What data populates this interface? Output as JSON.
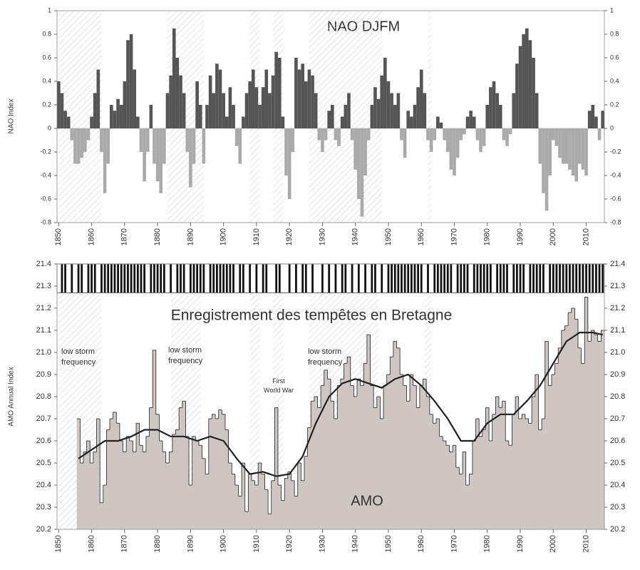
{
  "chart_data": [
    {
      "type": "bar",
      "title": "NAO DJFM",
      "ylabel": "NAO Index",
      "xlim": [
        1849.5,
        2015.5
      ],
      "xticks": [
        1850,
        1860,
        1870,
        1880,
        1890,
        1900,
        1910,
        1920,
        1930,
        1940,
        1950,
        1960,
        1970,
        1980,
        1990,
        2000,
        2010
      ],
      "ylim": [
        -0.8,
        1
      ],
      "yticks": [
        -0.8,
        -0.6,
        -0.4,
        -0.2,
        0,
        0.2,
        0.4,
        0.6,
        0.8,
        1
      ],
      "positive_color": "#555555",
      "negative_color": "#aaaaaa",
      "hatch_color": "#c8c8c8",
      "hatched_periods": [
        [
          1850,
          1863
        ],
        [
          1883,
          1894
        ],
        [
          1908,
          1911
        ],
        [
          1915,
          1918
        ],
        [
          1926,
          1948
        ],
        [
          1962,
          1963
        ]
      ],
      "x": [
        1850,
        1851,
        1852,
        1853,
        1854,
        1855,
        1856,
        1857,
        1858,
        1859,
        1860,
        1861,
        1862,
        1863,
        1864,
        1865,
        1866,
        1867,
        1868,
        1869,
        1870,
        1871,
        1872,
        1873,
        1874,
        1875,
        1876,
        1877,
        1878,
        1879,
        1880,
        1881,
        1882,
        1883,
        1884,
        1885,
        1886,
        1887,
        1888,
        1889,
        1890,
        1891,
        1892,
        1893,
        1894,
        1895,
        1896,
        1897,
        1898,
        1899,
        1900,
        1901,
        1902,
        1903,
        1904,
        1905,
        1906,
        1907,
        1908,
        1909,
        1910,
        1911,
        1912,
        1913,
        1914,
        1915,
        1916,
        1917,
        1918,
        1919,
        1920,
        1921,
        1922,
        1923,
        1924,
        1925,
        1926,
        1927,
        1928,
        1929,
        1930,
        1931,
        1932,
        1933,
        1934,
        1935,
        1936,
        1937,
        1938,
        1939,
        1940,
        1941,
        1942,
        1943,
        1944,
        1945,
        1946,
        1947,
        1948,
        1949,
        1950,
        1951,
        1952,
        1953,
        1954,
        1955,
        1956,
        1957,
        1958,
        1959,
        1960,
        1961,
        1962,
        1963,
        1964,
        1965,
        1966,
        1967,
        1968,
        1969,
        1970,
        1971,
        1972,
        1973,
        1974,
        1975,
        1976,
        1977,
        1978,
        1979,
        1980,
        1981,
        1982,
        1983,
        1984,
        1985,
        1986,
        1987,
        1988,
        1989,
        1990,
        1991,
        1992,
        1993,
        1994,
        1995,
        1996,
        1997,
        1998,
        1999,
        2000,
        2001,
        2002,
        2003,
        2004,
        2005,
        2006,
        2007,
        2008,
        2009,
        2010,
        2011,
        2012,
        2013,
        2014,
        2015
      ],
      "values": [
        0.4,
        0.3,
        0.15,
        0.1,
        -0.1,
        -0.3,
        -0.3,
        -0.25,
        -0.2,
        -0.1,
        0.1,
        0.3,
        0.5,
        -0.2,
        -0.55,
        -0.3,
        0.2,
        0.15,
        0.25,
        0.2,
        0.4,
        0.75,
        0.8,
        0.5,
        0.1,
        -0.2,
        -0.45,
        -0.2,
        0.2,
        -0.3,
        -0.45,
        -0.55,
        -0.3,
        0.3,
        0.45,
        0.85,
        0.6,
        0.45,
        0.3,
        -0.2,
        -0.5,
        -0.3,
        0.4,
        0.2,
        -0.3,
        0.2,
        0.45,
        0.3,
        0.55,
        0.5,
        0.3,
        0.1,
        0.35,
        0.2,
        -0.15,
        -0.3,
        0.1,
        0.3,
        0.4,
        0.5,
        0.35,
        0.2,
        0.35,
        0.5,
        0.3,
        0.45,
        0.65,
        0.6,
        0.1,
        -0.4,
        -0.6,
        -0.2,
        0.6,
        0.5,
        0.55,
        0.4,
        0.5,
        0.45,
        0.3,
        -0.1,
        -0.2,
        -0.1,
        0.15,
        0.2,
        -0.1,
        -0.15,
        0.1,
        0.2,
        0.3,
        -0.1,
        -0.35,
        -0.6,
        -0.75,
        -0.4,
        -0.1,
        0.2,
        0.35,
        0.25,
        0.45,
        0.6,
        0.4,
        0.3,
        0.2,
        0.3,
        -0.1,
        -0.25,
        0.15,
        0.1,
        0.2,
        0.35,
        0.5,
        0.3,
        -0.1,
        -0.2,
        -0.1,
        0.1,
        0.05,
        -0.1,
        -0.2,
        -0.35,
        -0.4,
        -0.25,
        -0.1,
        -0.05,
        0.1,
        0.15,
        0.1,
        -0.1,
        -0.2,
        -0.15,
        0.2,
        0.35,
        0.4,
        0.3,
        0.2,
        -0.1,
        -0.15,
        -0.05,
        0.3,
        0.55,
        0.7,
        0.8,
        0.85,
        0.75,
        0.6,
        0.3,
        -0.3,
        -0.55,
        -0.7,
        -0.4,
        -0.1,
        -0.15,
        -0.25,
        -0.3,
        -0.3,
        -0.35,
        -0.4,
        -0.45,
        -0.3,
        -0.35,
        -0.4,
        0.15,
        0.2,
        0.1,
        -0.1,
        0.15
      ]
    },
    {
      "type": "step",
      "title": "Enregistrement des tempêtes en Bretagne",
      "ylabel": "AMO Annual Index",
      "series_label": "AMO",
      "annotations": [
        "low storm frequency",
        "low storm frequency",
        "low storm frequency",
        "First World War"
      ],
      "xlim": [
        1849.5,
        2015.5
      ],
      "xticks": [
        1850,
        1860,
        1870,
        1880,
        1890,
        1900,
        1910,
        1920,
        1930,
        1940,
        1950,
        1960,
        1970,
        1980,
        1990,
        2000,
        2010
      ],
      "ylim": [
        20.2,
        21.4
      ],
      "yticks": [
        20.2,
        20.3,
        20.4,
        20.5,
        20.6,
        20.7,
        20.8,
        20.9,
        {
          "value": 21,
          "label": "21.0"
        },
        21.1,
        21.2,
        21.3,
        21.4
      ],
      "fill_color": "#cdc6c2",
      "line_color": "#222222",
      "hatch_color": "#c8c8c8",
      "hatched_periods": [
        [
          1850,
          1863
        ],
        [
          1884,
          1893
        ],
        [
          1908,
          1911
        ],
        [
          1915,
          1918
        ],
        [
          1926,
          1947
        ],
        [
          1961,
          1963
        ]
      ],
      "x": [
        1856,
        1857,
        1858,
        1859,
        1860,
        1861,
        1862,
        1863,
        1864,
        1865,
        1866,
        1867,
        1868,
        1869,
        1870,
        1871,
        1872,
        1873,
        1874,
        1875,
        1876,
        1877,
        1878,
        1879,
        1880,
        1881,
        1882,
        1883,
        1884,
        1885,
        1886,
        1887,
        1888,
        1889,
        1890,
        1891,
        1892,
        1893,
        1894,
        1895,
        1896,
        1897,
        1898,
        1899,
        1900,
        1901,
        1902,
        1903,
        1904,
        1905,
        1906,
        1907,
        1908,
        1909,
        1910,
        1911,
        1912,
        1913,
        1914,
        1915,
        1916,
        1917,
        1918,
        1919,
        1920,
        1921,
        1922,
        1923,
        1924,
        1925,
        1926,
        1927,
        1928,
        1929,
        1930,
        1931,
        1932,
        1933,
        1934,
        1935,
        1936,
        1937,
        1938,
        1939,
        1940,
        1941,
        1942,
        1943,
        1944,
        1945,
        1946,
        1947,
        1948,
        1949,
        1950,
        1951,
        1952,
        1953,
        1954,
        1955,
        1956,
        1957,
        1958,
        1959,
        1960,
        1961,
        1962,
        1963,
        1964,
        1965,
        1966,
        1967,
        1968,
        1969,
        1970,
        1971,
        1972,
        1973,
        1974,
        1975,
        1976,
        1977,
        1978,
        1979,
        1980,
        1981,
        1982,
        1983,
        1984,
        1985,
        1986,
        1987,
        1988,
        1989,
        1990,
        1991,
        1992,
        1993,
        1994,
        1995,
        1996,
        1997,
        1998,
        1999,
        2000,
        2001,
        2002,
        2003,
        2004,
        2005,
        2006,
        2007,
        2008,
        2009,
        2010,
        2011,
        2012,
        2013,
        2014,
        2015
      ],
      "values": [
        20.7,
        20.5,
        20.55,
        20.6,
        20.5,
        20.55,
        20.7,
        20.32,
        20.4,
        20.65,
        20.7,
        20.73,
        20.68,
        20.6,
        20.55,
        20.62,
        20.6,
        20.55,
        20.68,
        20.58,
        20.55,
        20.62,
        20.75,
        21.01,
        20.72,
        20.6,
        20.55,
        20.5,
        20.55,
        20.63,
        20.65,
        20.75,
        20.78,
        20.62,
        20.4,
        20.62,
        20.6,
        20.58,
        20.52,
        20.45,
        20.7,
        20.72,
        20.7,
        20.74,
        20.72,
        20.65,
        20.5,
        20.45,
        20.4,
        20.35,
        20.5,
        20.28,
        20.45,
        20.42,
        20.4,
        20.5,
        20.45,
        20.38,
        20.27,
        20.42,
        20.75,
        20.4,
        20.33,
        20.43,
        20.46,
        20.42,
        20.35,
        20.5,
        20.42,
        20.53,
        20.66,
        20.78,
        20.8,
        20.75,
        20.85,
        20.92,
        20.88,
        20.78,
        20.7,
        20.85,
        20.88,
        20.95,
        20.98,
        20.85,
        20.8,
        20.88,
        20.85,
        20.95,
        21.08,
        20.85,
        20.75,
        20.8,
        20.7,
        20.85,
        20.9,
        20.98,
        21.05,
        21.02,
        20.9,
        20.85,
        20.78,
        20.9,
        20.85,
        20.75,
        20.85,
        20.88,
        20.8,
        20.72,
        20.68,
        20.7,
        20.62,
        20.6,
        20.58,
        20.55,
        20.58,
        20.48,
        20.45,
        20.55,
        20.4,
        20.45,
        20.6,
        20.7,
        20.62,
        20.65,
        20.75,
        20.6,
        20.72,
        20.8,
        20.75,
        20.78,
        20.6,
        20.58,
        20.72,
        20.8,
        20.7,
        20.72,
        20.7,
        20.68,
        20.8,
        20.9,
        20.65,
        20.7,
        21.05,
        20.85,
        20.9,
        20.95,
        21.02,
        21.1,
        21.12,
        21.18,
        21.2,
        21.15,
        21.02,
        20.95,
        21.25,
        21.05,
        21.1,
        21.08,
        21.05,
        21.1
      ],
      "smoothed": {
        "x": [
          1856,
          1860,
          1864,
          1868,
          1872,
          1876,
          1880,
          1884,
          1888,
          1892,
          1896,
          1900,
          1904,
          1908,
          1912,
          1916,
          1920,
          1924,
          1928,
          1932,
          1936,
          1940,
          1944,
          1948,
          1952,
          1956,
          1960,
          1964,
          1968,
          1972,
          1976,
          1980,
          1984,
          1988,
          1992,
          1996,
          2000,
          2004,
          2008,
          2012,
          2015
        ],
        "values": [
          20.52,
          20.56,
          20.6,
          20.6,
          20.62,
          20.65,
          20.65,
          20.62,
          20.62,
          20.6,
          20.62,
          20.6,
          20.52,
          20.45,
          20.46,
          20.44,
          20.45,
          20.53,
          20.68,
          20.8,
          20.86,
          20.88,
          20.86,
          20.84,
          20.88,
          20.9,
          20.85,
          20.78,
          20.7,
          20.6,
          20.6,
          20.68,
          20.72,
          20.72,
          20.78,
          20.85,
          20.95,
          21.05,
          21.09,
          21.09,
          21.08
        ]
      },
      "storm_band": [
        21.27,
        21.4
      ],
      "storm_years": [
        1851,
        1852,
        1854,
        1856,
        1857,
        1859,
        1860,
        1861,
        1863,
        1864,
        1865,
        1866,
        1867,
        1868,
        1869,
        1870,
        1871,
        1872,
        1873,
        1874,
        1875,
        1876,
        1878,
        1879,
        1880,
        1881,
        1882,
        1884,
        1886,
        1887,
        1888,
        1890,
        1891,
        1892,
        1893,
        1894,
        1896,
        1897,
        1898,
        1899,
        1900,
        1901,
        1902,
        1903,
        1905,
        1906,
        1908,
        1910,
        1912,
        1913,
        1916,
        1917,
        1920,
        1922,
        1924,
        1925,
        1927,
        1930,
        1932,
        1934,
        1936,
        1937,
        1939,
        1941,
        1943,
        1945,
        1946,
        1948,
        1950,
        1951,
        1952,
        1953,
        1954,
        1955,
        1956,
        1957,
        1958,
        1959,
        1960,
        1962,
        1964,
        1965,
        1966,
        1967,
        1968,
        1969,
        1971,
        1972,
        1973,
        1974,
        1976,
        1977,
        1978,
        1979,
        1980,
        1981,
        1983,
        1984,
        1985,
        1986,
        1988,
        1989,
        1990,
        1991,
        1993,
        1994,
        1995,
        1996,
        1997,
        1999,
        2000,
        2001,
        2002,
        2003,
        2004,
        2005,
        2006,
        2007,
        2008,
        2009,
        2010,
        2011,
        2012,
        2013,
        2014,
        2015
      ]
    }
  ]
}
